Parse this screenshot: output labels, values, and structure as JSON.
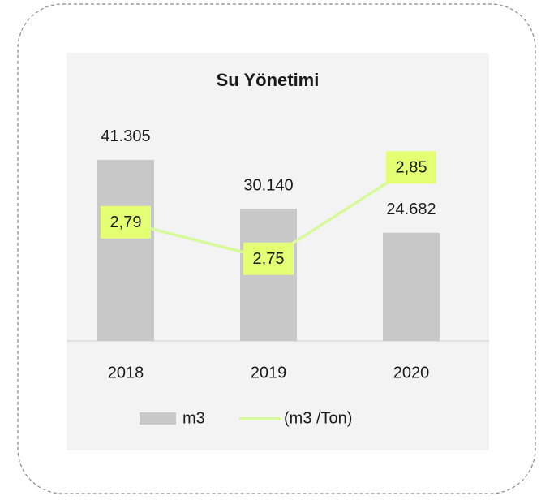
{
  "chart_data": {
    "type": "bar",
    "title": "Su Yönetimi",
    "categories": [
      "2018",
      "2019",
      "2020"
    ],
    "series": [
      {
        "name": "m3",
        "type": "bar",
        "color": "#c8c8c8",
        "values": [
          41305,
          30140,
          24682
        ],
        "value_labels": [
          "41.305",
          "30.140",
          "24.682"
        ]
      },
      {
        "name": "(m3 /Ton)",
        "type": "line",
        "axis": "y2",
        "color": "#d6fa9a",
        "label_color": "#e4ff73",
        "values": [
          2.79,
          2.75,
          2.85
        ],
        "value_labels": [
          "2,79",
          "2,75",
          "2,85"
        ]
      }
    ],
    "ylim": [
      0,
      50000
    ],
    "y2lim": [
      2.66,
      2.9
    ]
  }
}
